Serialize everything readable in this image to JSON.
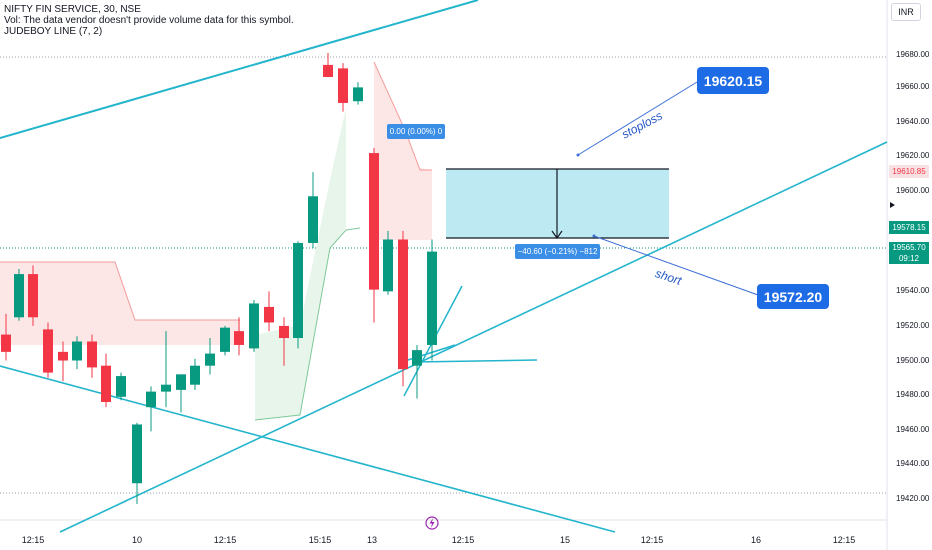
{
  "header": {
    "symbol": "NIFTY FIN SERVICE, 30, NSE",
    "volume_note": "Vol: The data vendor doesn't provide volume data for this symbol.",
    "indicator": "JUDEBOY LINE (7, 2)"
  },
  "currency_button": "INR",
  "y_axis": {
    "ticks": [
      "19680.00",
      "19660.00",
      "19640.00",
      "19620.00",
      "19600.00",
      "19540.00",
      "19520.00",
      "19500.00",
      "19480.00",
      "19460.00",
      "19440.00",
      "19420.00"
    ]
  },
  "x_axis": {
    "labels": [
      "12:15",
      "10",
      "12:15",
      "15:15",
      "13",
      "12:15",
      "15",
      "12:15",
      "16",
      "12:15"
    ]
  },
  "price_badges": {
    "stoploss_level": "19610.85",
    "target_level": "19578.15",
    "last_price": "19565.70",
    "countdown": "09:12"
  },
  "annotations": {
    "stoploss_value": "19620.15",
    "stoploss_text": "stoploss",
    "short_value": "19572.20",
    "short_text": "short",
    "upper_label": "0.00 (0.00%) 0",
    "lower_label": "−40.60 (−0.21%) −812"
  },
  "colors": {
    "up": "#089981",
    "down": "#f23645",
    "trendline": "#22b5cc",
    "box_fill": "#bdeaf2",
    "callout": "#1e6be6",
    "measure_label": "#3a8ee6"
  },
  "chart_data": {
    "type": "candlestick",
    "y_range": [
      19410,
      19690
    ],
    "candles": [
      {
        "o": 19520,
        "h": 19532,
        "l": 19505,
        "c": 19510
      },
      {
        "o": 19530,
        "h": 19558,
        "l": 19528,
        "c": 19555
      },
      {
        "o": 19555,
        "h": 19560,
        "l": 19525,
        "c": 19530
      },
      {
        "o": 19523,
        "h": 19527,
        "l": 19495,
        "c": 19498
      },
      {
        "o": 19510,
        "h": 19516,
        "l": 19493,
        "c": 19505
      },
      {
        "o": 19505,
        "h": 19519,
        "l": 19500,
        "c": 19516
      },
      {
        "o": 19516,
        "h": 19520,
        "l": 19495,
        "c": 19501
      },
      {
        "o": 19502,
        "h": 19509,
        "l": 19478,
        "c": 19481
      },
      {
        "o": 19484,
        "h": 19498,
        "l": 19482,
        "c": 19496
      },
      {
        "o": 19434,
        "h": 19469,
        "l": 19422,
        "c": 19468
      },
      {
        "o": 19478,
        "h": 19490,
        "l": 19464,
        "c": 19487
      },
      {
        "o": 19487,
        "h": 19522,
        "l": 19478,
        "c": 19491
      },
      {
        "o": 19488,
        "h": 19497,
        "l": 19475,
        "c": 19497
      },
      {
        "o": 19491,
        "h": 19506,
        "l": 19488,
        "c": 19502
      },
      {
        "o": 19502,
        "h": 19518,
        "l": 19497,
        "c": 19509
      },
      {
        "o": 19510,
        "h": 19525,
        "l": 19508,
        "c": 19524
      },
      {
        "o": 19522,
        "h": 19530,
        "l": 19508,
        "c": 19514
      },
      {
        "o": 19512,
        "h": 19540,
        "l": 19510,
        "c": 19538
      },
      {
        "o": 19536,
        "h": 19545,
        "l": 19522,
        "c": 19527
      },
      {
        "o": 19525,
        "h": 19530,
        "l": 19502,
        "c": 19518
      },
      {
        "o": 19518,
        "h": 19574,
        "l": 19512,
        "c": 19573
      },
      {
        "o": 19573,
        "h": 19614,
        "l": 19570,
        "c": 19600
      },
      {
        "o": 19676,
        "h": 19683,
        "l": 19669,
        "c": 19669
      },
      {
        "o": 19674,
        "h": 19677,
        "l": 19649,
        "c": 19654
      },
      {
        "o": 19655,
        "h": 19666,
        "l": 19653,
        "c": 19663
      },
      {
        "o": 19625,
        "h": 19628,
        "l": 19527,
        "c": 19546
      },
      {
        "o": 19545,
        "h": 19580,
        "l": 19543,
        "c": 19575
      },
      {
        "o": 19575,
        "h": 19580,
        "l": 19490,
        "c": 19500
      },
      {
        "o": 19502,
        "h": 19514,
        "l": 19483,
        "c": 19511
      },
      {
        "o": 19514,
        "h": 19575,
        "l": 19505,
        "c": 19568
      }
    ],
    "levels": {
      "stoploss": 19610.85,
      "entry": 19578.15,
      "last": 19565.7
    }
  }
}
